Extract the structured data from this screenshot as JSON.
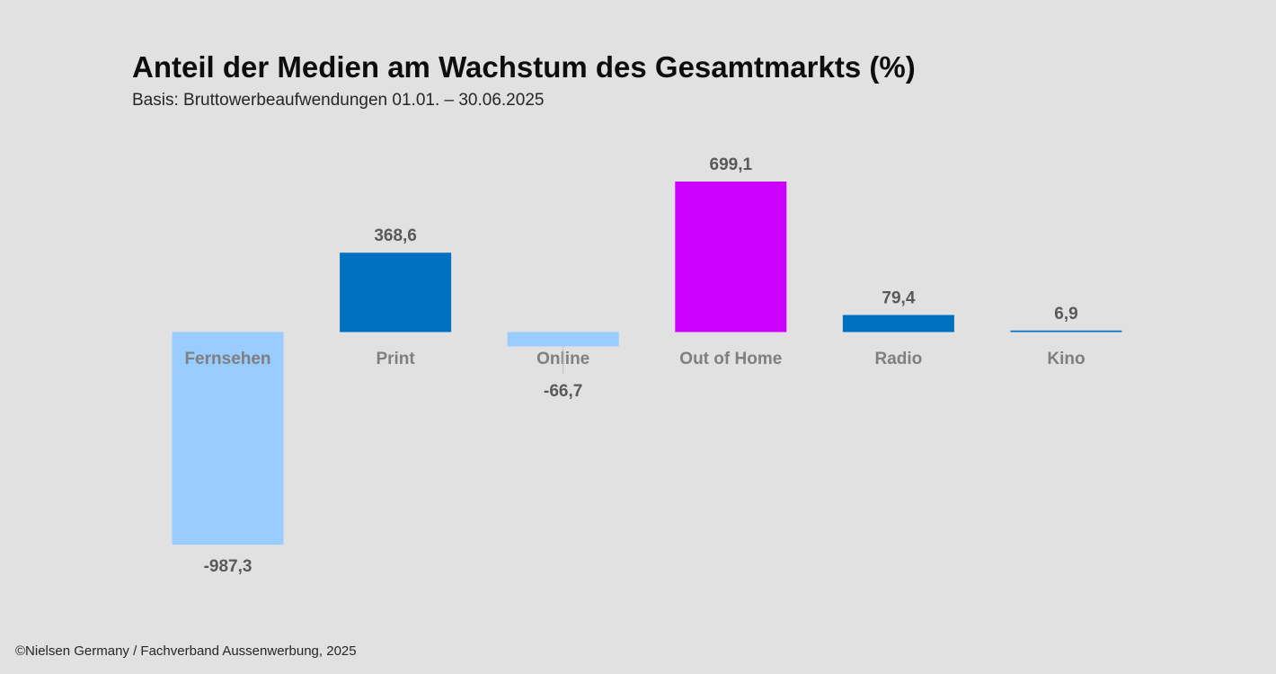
{
  "title": "Anteil der Medien am Wachstum des Gesamtmarkts (%)",
  "subtitle": "Basis: Bruttowerbeaufwendungen 01.01. – 30.06.2025",
  "source": "©Nielsen Germany / Fachverband Aussenwerbung, 2025",
  "chart_data": {
    "type": "bar",
    "title": "Anteil der Medien am Wachstum des Gesamtmarkts (%)",
    "subtitle": "Basis: Bruttowerbeaufwendungen 01.01. – 30.06.2025",
    "categories": [
      "Fernsehen",
      "Print",
      "Online",
      "Out of Home",
      "Radio",
      "Kino"
    ],
    "values": [
      -987.3,
      368.6,
      -66.7,
      699.1,
      79.4,
      6.9
    ],
    "value_labels": [
      "-987,3",
      "368,6",
      "-66,7",
      "699,1",
      "79,4",
      "6,9"
    ],
    "colors": [
      "#99ccff",
      "#0070c0",
      "#99ccff",
      "#cc00ff",
      "#0070c0",
      "#0070c0"
    ],
    "xlabel": "",
    "ylabel": "",
    "grid": false,
    "legend": "none"
  }
}
